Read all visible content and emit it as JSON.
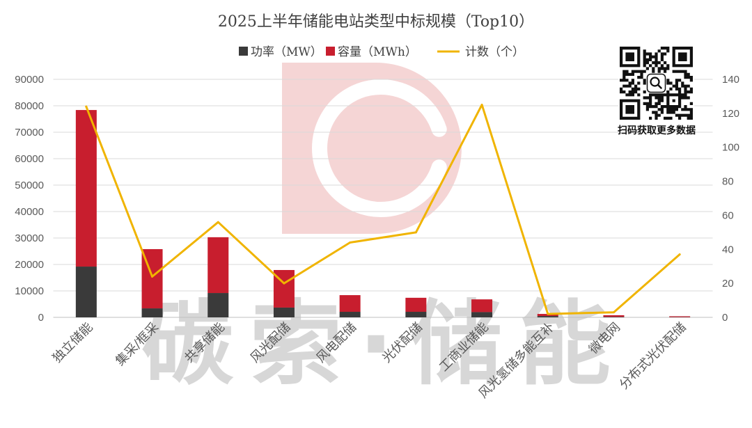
{
  "chart_data": {
    "type": "bar",
    "stacked": true,
    "title": "2025上半年储能电站类型中标规模（Top10）",
    "categories": [
      "独立储能",
      "集采/框采",
      "共享储能",
      "风光配储",
      "风电配储",
      "光伏配储",
      "工商业储能",
      "风光氢储多能互补",
      "微电网",
      "分布式光伏配储"
    ],
    "series": [
      {
        "name": "功率（MW）",
        "type": "bar",
        "axis": "left",
        "color": "#3a3a3a",
        "values": [
          19200,
          3400,
          9200,
          3700,
          2100,
          2100,
          2000,
          500,
          200,
          100
        ]
      },
      {
        "name": "容量（MWh）",
        "type": "bar",
        "axis": "left",
        "color": "#c81e2e",
        "values": [
          59200,
          22400,
          21100,
          14200,
          6300,
          5300,
          4800,
          800,
          600,
          300
        ]
      },
      {
        "name": "计数（个）",
        "type": "line",
        "axis": "right",
        "color": "#f0b400",
        "values": [
          124,
          24,
          56,
          20,
          44,
          50,
          125,
          2,
          3,
          37
        ]
      }
    ],
    "y_left": {
      "range": [
        0,
        90000
      ],
      "ticks": [
        0,
        10000,
        20000,
        30000,
        40000,
        50000,
        60000,
        70000,
        80000,
        90000
      ]
    },
    "y_right": {
      "range": [
        0,
        140
      ],
      "ticks": [
        0,
        20,
        40,
        60,
        80,
        100,
        120,
        140
      ]
    },
    "grid": true,
    "legend_position": "top"
  },
  "qr": {
    "caption": "扫码获取更多数据"
  },
  "watermark": {
    "text": "碳索·储能"
  },
  "colors": {
    "logo_watermark": "#f5d5d5",
    "gridline": "#d9d9d9",
    "axis_line": "#bfbfbf"
  }
}
